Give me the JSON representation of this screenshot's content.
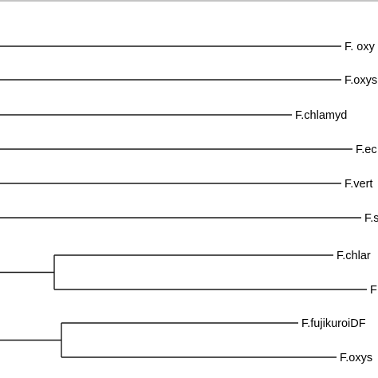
{
  "tree": {
    "leaves": [
      {
        "id": "L1",
        "label": "F. oxy"
      },
      {
        "id": "L2",
        "label": "F.oxys"
      },
      {
        "id": "L3",
        "label": "F.chlamyd"
      },
      {
        "id": "L4",
        "label": "F.ec"
      },
      {
        "id": "L5",
        "label": "F.vert"
      },
      {
        "id": "L6",
        "label": "F.s"
      },
      {
        "id": "L7",
        "label": "F.chlar"
      },
      {
        "id": "L8",
        "label": "F"
      },
      {
        "id": "L9",
        "label": "F.fujikuroiDF"
      },
      {
        "id": "L10",
        "label": "F.oxys"
      }
    ]
  }
}
